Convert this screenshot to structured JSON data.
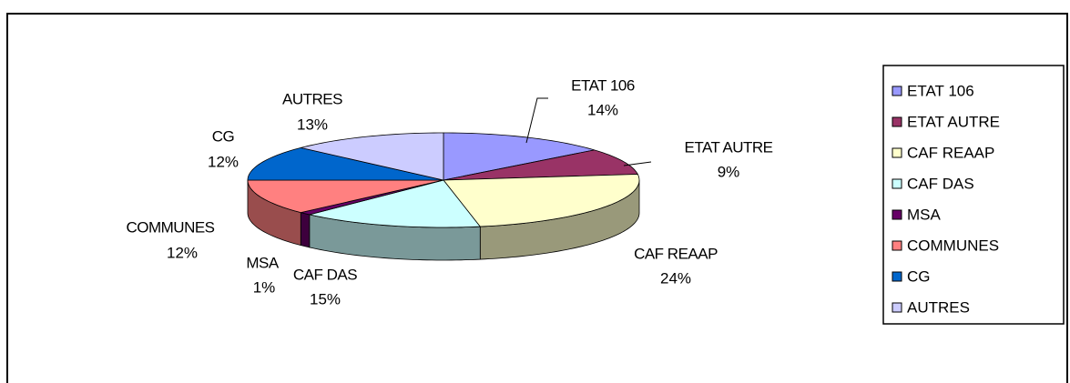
{
  "chart_data": {
    "type": "pie",
    "categories": [
      "ETAT 106",
      "ETAT AUTRE",
      "CAF REAAP",
      "CAF DAS",
      "MSA",
      "COMMUNES",
      "CG",
      "AUTRES"
    ],
    "values": [
      14,
      9,
      24,
      15,
      1,
      12,
      12,
      13
    ],
    "value_labels": [
      "14%",
      "9%",
      "24%",
      "15%",
      "1%",
      "12%",
      "12%",
      "13%"
    ],
    "colors": [
      "#9999ff",
      "#993366",
      "#ffffcc",
      "#ccffff",
      "#660066",
      "#ff8080",
      "#0066cc",
      "#ccccff"
    ],
    "legend": "right"
  }
}
